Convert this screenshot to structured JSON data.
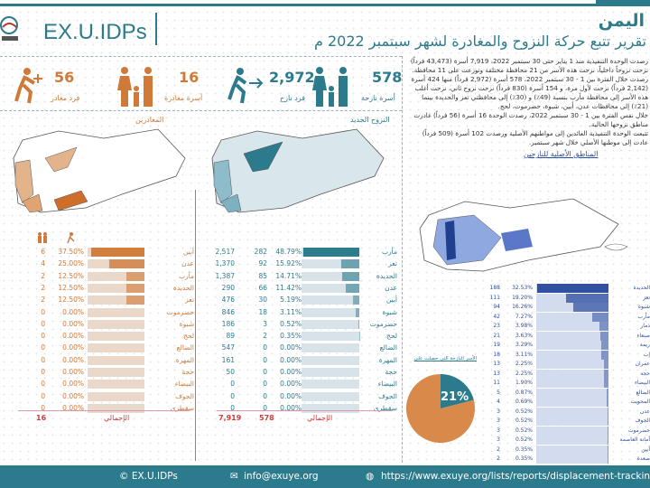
{
  "header": {
    "logo_text": "EX.U.IDPs",
    "title": "اليمن",
    "subtitle": "تقرير تتبع حركة النزوح والمغادرة لشهر سبتمبر 2022 م"
  },
  "stats": [
    {
      "value": "56",
      "label": "فرد مغادر",
      "icon": "departing-person-icon",
      "color": "#d07a3a"
    },
    {
      "value": "16",
      "label": "أسرة مغادرة",
      "icon": "family-icon",
      "color": "#d07a3a"
    },
    {
      "value": "2,972",
      "label": "فرد نازح",
      "icon": "walking-person-arrow-icon",
      "color": "#2c7b8c"
    },
    {
      "value": "578",
      "label": "أسرة نازحة",
      "icon": "family-icon",
      "color": "#2c7b8c"
    }
  ],
  "intro": [
    "رصدت الوحدة التنفيذية منذ 1 يناير حتى 30 سبتمبر 2022، 7,919 أسرة (43,473 فرداً) نزحت نزوحاً داخلياً، نزحت هذه الأسر من 21 محافظة مختلفة وتوزعت على 11 محافظة.",
    "رصدت خلال الفترة بين 1 - 30 سبتمبر 2022، 578 أسرة (2,972 فرداً) منها 424 أسرة (2,142 فرداً) نزحت لأول مرة، و 154 أسرة (830 فرداً) نزحت نزوح ثاني، نزحت أغلب هذه الأسر إلى محافظة مأرب بنسبة (49٪) و (30٪) إلى محافظتي تعز والحديدة بينما (21٪) إلى محافظات عدن، أبين، شبوة، حضرموت، لحج.",
    "خلال نفس الفترة بين 1 - 30 سبتمبر 2022، رصدت الوحدة 16 أسرة (56 فرداً) غادرت مناطق نزوحها الحالية.",
    "تتبعت الوحدة التنفيذية العائدين إلى مواطنهم الأصلية ورصدت 102 أسرة (509 فرداً) عادت إلى موطنها الأصلي خلال شهر سبتمبر."
  ],
  "departures": {
    "title": "المغادرين",
    "total_label": "الإجمالي",
    "total": "16",
    "color": "#d07a3a",
    "rows": [
      [
        "أبين",
        6,
        "37.50%",
        37.5
      ],
      [
        "عدن",
        4,
        "25.00%",
        25
      ],
      [
        "مأرب",
        2,
        "12.50%",
        12.5
      ],
      [
        "الحديدة",
        2,
        "12.50%",
        12.5
      ],
      [
        "تعز",
        2,
        "12.50%",
        12.5
      ],
      [
        "حضرموت",
        0,
        "0.00%",
        0
      ],
      [
        "شبوة",
        0,
        "0.00%",
        0
      ],
      [
        "لحج",
        0,
        "0.00%",
        0
      ],
      [
        "الضالع",
        0,
        "0.00%",
        0
      ],
      [
        "المهرة",
        0,
        "0.00%",
        0
      ],
      [
        "حجة",
        0,
        "0.00%",
        0
      ],
      [
        "البيضاء",
        0,
        "0.00%",
        0
      ],
      [
        "الجوف",
        0,
        "0.00%",
        0
      ],
      [
        "سقطرى",
        0,
        "0.00%",
        0
      ]
    ]
  },
  "new_displacement": {
    "title": "النزوح الجديد",
    "total_label": "الإجمالي",
    "total_families": "578",
    "total_cumulative": "7,919",
    "color": "#2c7b8c",
    "rows": [
      [
        "مأرب",
        "2,517",
        282,
        "48.79%",
        48.79
      ],
      [
        "تعز",
        "1,370",
        92,
        "15.92%",
        15.92
      ],
      [
        "الحديدة",
        "1,387",
        85,
        "14.71%",
        14.71
      ],
      [
        "عدن",
        "290",
        66,
        "11.42%",
        11.42
      ],
      [
        "أبين",
        "476",
        30,
        "5.19%",
        5.19
      ],
      [
        "شبوة",
        "846",
        18,
        "3.11%",
        3.11
      ],
      [
        "حضرموت",
        "186",
        3,
        "0.52%",
        0.52
      ],
      [
        "لحج",
        "89",
        2,
        "0.35%",
        0.35
      ],
      [
        "الضالع",
        "547",
        0,
        "0.00%",
        0
      ],
      [
        "المهرة",
        "161",
        0,
        "0.00%",
        0
      ],
      [
        "حجة",
        "50",
        0,
        "0.00%",
        0
      ],
      [
        "البيضاء",
        "0",
        0,
        "0.00%",
        0
      ],
      [
        "الجوف",
        "0",
        0,
        "0.00%",
        0
      ],
      [
        "سقطرى",
        "0",
        0,
        "0.00%",
        0
      ]
    ]
  },
  "origins": {
    "title": "المناطق الأصلية للنازحين",
    "color": "#2f4f9f",
    "rows": [
      [
        "الحديدة",
        188,
        "32.53%",
        32.53
      ],
      [
        "تعز",
        111,
        "19.20%",
        19.2
      ],
      [
        "شبوة",
        94,
        "16.26%",
        16.26
      ],
      [
        "مأرب",
        42,
        "7.27%",
        7.27
      ],
      [
        "ذمار",
        23,
        "3.98%",
        3.98
      ],
      [
        "صنعاء",
        21,
        "3.63%",
        3.63
      ],
      [
        "ريمة",
        19,
        "3.29%",
        3.29
      ],
      [
        "إب",
        18,
        "3.11%",
        3.11
      ],
      [
        "عمران",
        13,
        "2.25%",
        2.25
      ],
      [
        "حجة",
        13,
        "2.25%",
        2.25
      ],
      [
        "البيضاء",
        11,
        "1.90%",
        1.9
      ],
      [
        "الضالع",
        5,
        "0.87%",
        0.87
      ],
      [
        "المحويت",
        4,
        "0.69%",
        0.69
      ],
      [
        "عدن",
        3,
        "0.52%",
        0.52
      ],
      [
        "الجوف",
        3,
        "0.52%",
        0.52
      ],
      [
        "حضرموت",
        3,
        "0.52%",
        0.52
      ],
      [
        "أمانة العاصمة",
        3,
        "0.52%",
        0.52
      ],
      [
        "أبين",
        2,
        "0.35%",
        0.35
      ],
      [
        "صعدة",
        2,
        "0.35%",
        0.35
      ]
    ]
  },
  "pie": {
    "label": "الأسر النازحة التي حصلت على",
    "value_label": "21%",
    "value": 21,
    "colors": [
      "#2c7b8c",
      "#d9894a"
    ]
  },
  "footer": {
    "brand": "© EX.U.IDPs",
    "email": "info@exuye.org",
    "url": "https://www.exuye.org/lists/reports/displacement-tracking"
  }
}
